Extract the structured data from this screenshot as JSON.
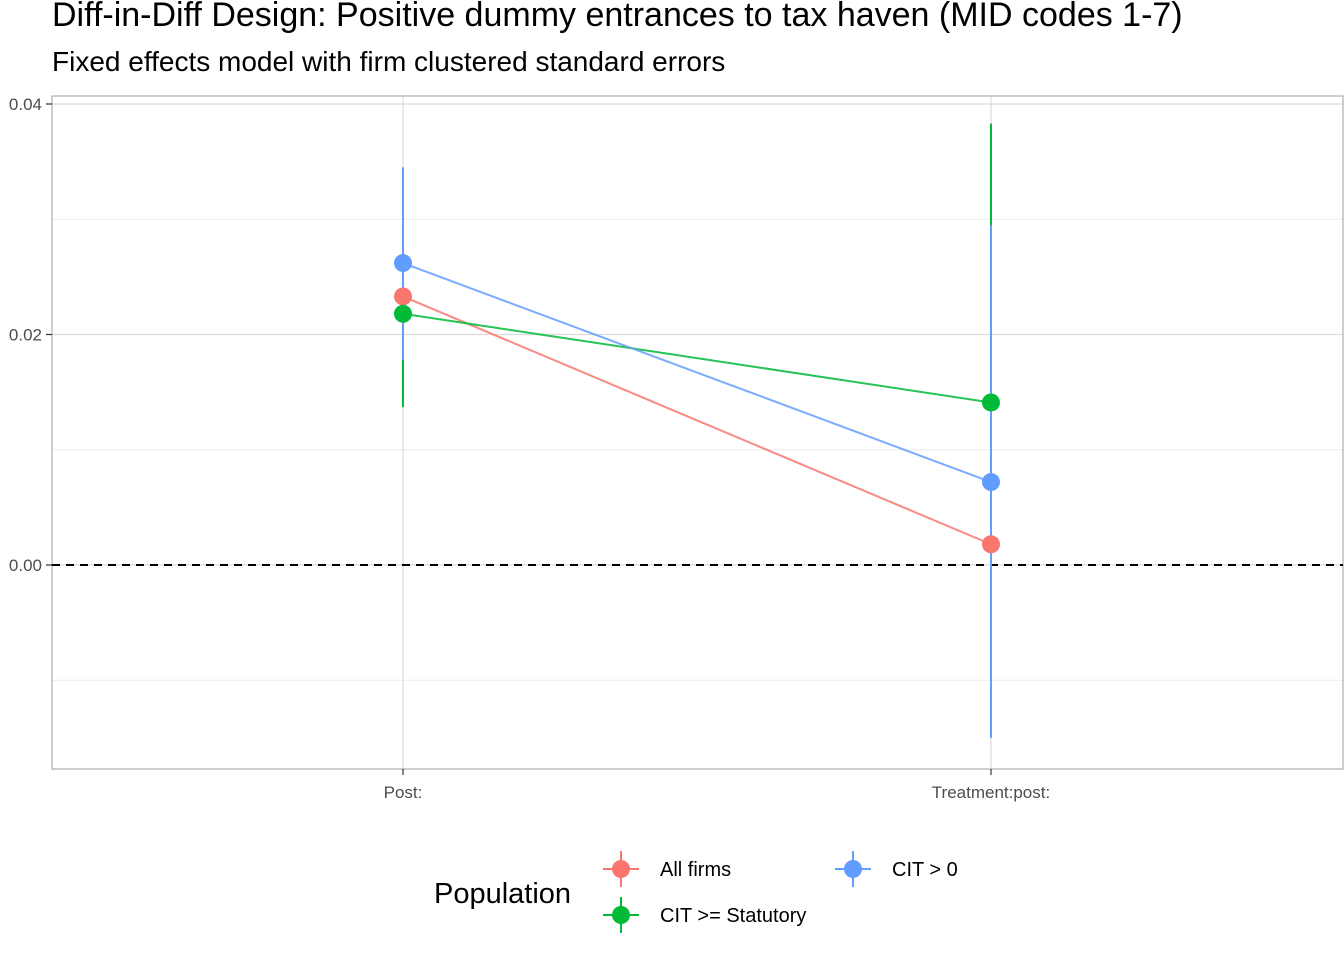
{
  "chart_data": {
    "type": "scatter",
    "title": "Diff-in-Diff Design: Positive dummy entrances to tax haven (MID codes 1-7)",
    "subtitle": "Fixed effects model with firm clustered standard errors",
    "xlabel": "",
    "ylabel": "",
    "categories": [
      "Post:",
      "Treatment:post:"
    ],
    "ylim": [
      -0.0175,
      0.0405
    ],
    "yticks": [
      0.0,
      0.02,
      0.04
    ],
    "ytick_labels": [
      "0.00",
      "0.02",
      "0.04"
    ],
    "reference_line": 0.0,
    "grid": true,
    "legend": {
      "title": "Population",
      "placement": "bottom"
    },
    "series": [
      {
        "name": "All firms",
        "color": "#F8766D",
        "values": [
          0.0233,
          0.0018
        ],
        "ci_low": [
          0.0233,
          0.0018
        ],
        "ci_high": [
          0.0233,
          0.0018
        ]
      },
      {
        "name": "CIT > 0",
        "color": "#619CFF",
        "values": [
          0.0262,
          0.0072
        ],
        "ci_low": [
          0.0178,
          -0.015
        ],
        "ci_high": [
          0.0345,
          0.0295
        ]
      },
      {
        "name": "CIT >= Statutory",
        "color": "#00BA38",
        "values": [
          0.0218,
          0.0141
        ],
        "ci_low": [
          0.0137,
          0.0141
        ],
        "ci_high": [
          0.0218,
          0.0383
        ]
      }
    ]
  }
}
